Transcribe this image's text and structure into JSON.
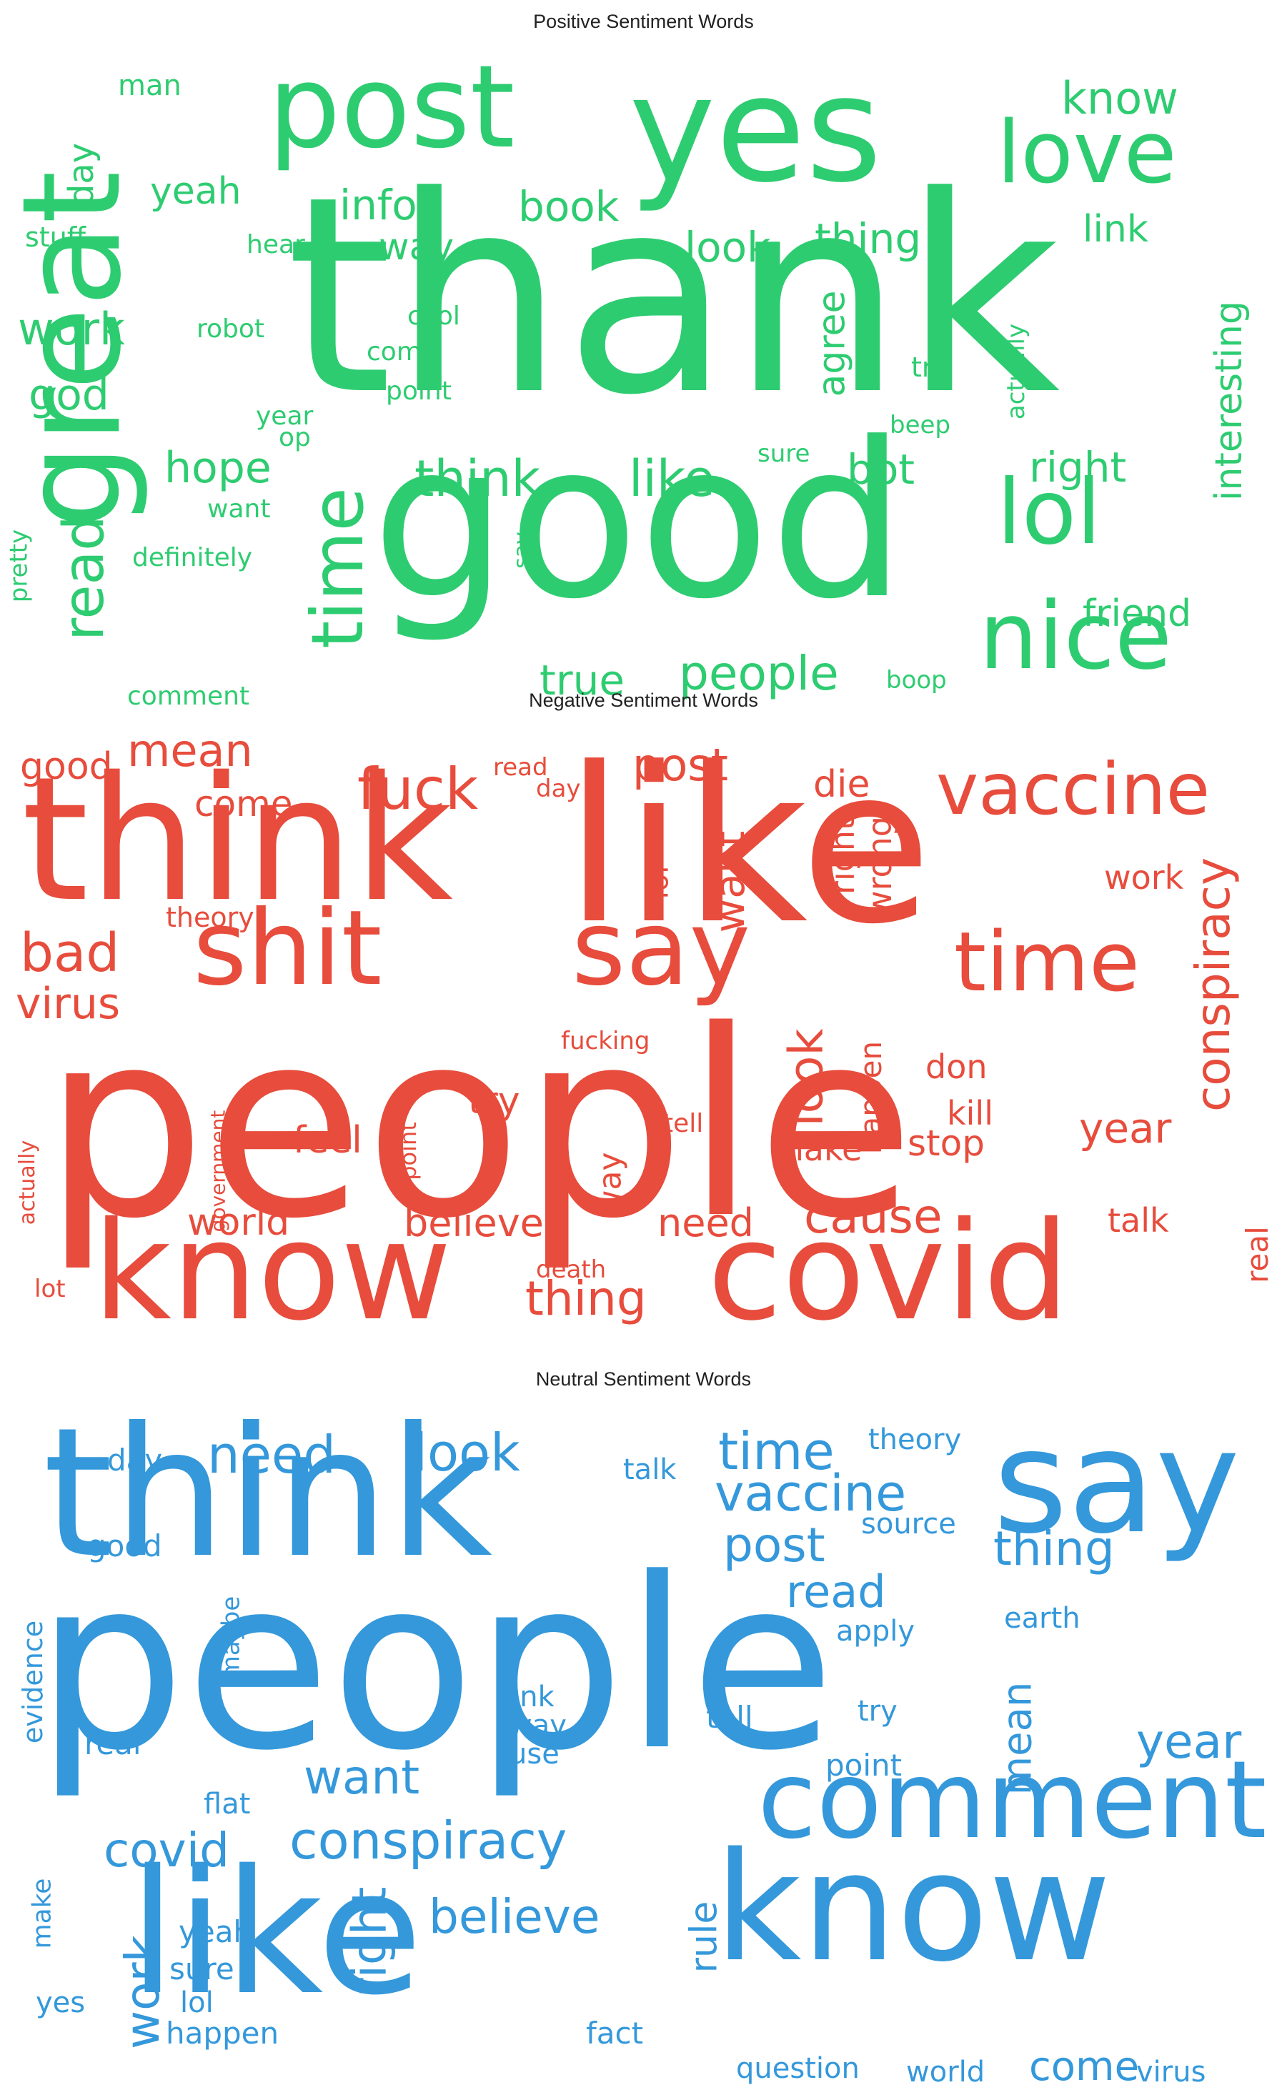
{
  "panels": [
    {
      "title": "Positive Sentiment Words",
      "color": "#2ecc71",
      "words": [
        "thank",
        "good",
        "great",
        "yes",
        "post",
        "love",
        "lol",
        "nice",
        "time",
        "read",
        "know",
        "info",
        "book",
        "yeah",
        "look",
        "thing",
        "link",
        "interesting",
        "day",
        "man",
        "stuff",
        "hear",
        "way",
        "work",
        "robot",
        "cool",
        "come",
        "god",
        "point",
        "year",
        "op",
        "agree",
        "try",
        "actually",
        "beep",
        "sure",
        "hope",
        "think",
        "like",
        "bot",
        "right",
        "want",
        "definitely",
        "pretty",
        "say",
        "friend",
        "true",
        "people",
        "boop",
        "comment"
      ]
    },
    {
      "title": "Negative Sentiment Words",
      "color": "#e74c3c",
      "words": [
        "people",
        "like",
        "think",
        "know",
        "covid",
        "shit",
        "say",
        "time",
        "vaccine",
        "conspiracy",
        "fuck",
        "post",
        "mean",
        "good",
        "come",
        "read",
        "day",
        "die",
        "want",
        "lol",
        "right",
        "wrong",
        "work",
        "bad",
        "theory",
        "virus",
        "fucking",
        "look",
        "happen",
        "don",
        "kill",
        "try",
        "tell",
        "feel",
        "point",
        "government",
        "actually",
        "make",
        "stop",
        "year",
        "way",
        "world",
        "believe",
        "need",
        "cause",
        "talk",
        "real",
        "thing",
        "death",
        "lot"
      ]
    },
    {
      "title": "Neutral Sentiment Words",
      "color": "#3498db",
      "words": [
        "people",
        "think",
        "say",
        "know",
        "like",
        "comment",
        "need",
        "look",
        "time",
        "theory",
        "day",
        "talk",
        "vaccine",
        "source",
        "good",
        "post",
        "thing",
        "read",
        "evidence",
        "maybe",
        "apply",
        "earth",
        "link",
        "way",
        "use",
        "tell",
        "try",
        "real",
        "want",
        "mean",
        "year",
        "point",
        "conspiracy",
        "covid",
        "flat",
        "make",
        "yeah",
        "believe",
        "rule",
        "sure",
        "work",
        "right",
        "yes",
        "lol",
        "happen",
        "fact",
        "question",
        "world",
        "come",
        "virus"
      ]
    }
  ]
}
